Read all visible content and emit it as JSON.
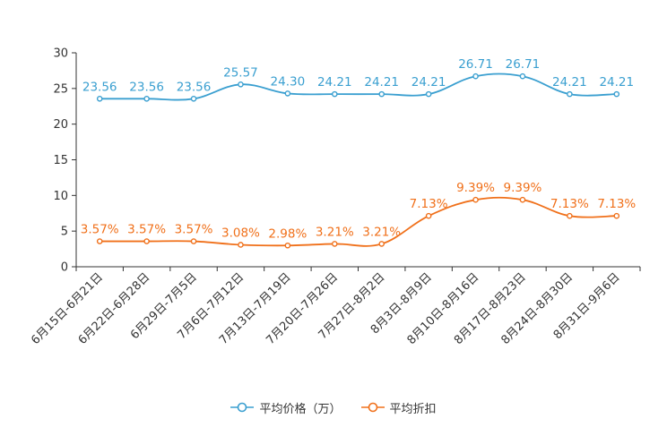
{
  "chart_data": {
    "type": "line",
    "title": "",
    "xlabel": "",
    "ylabel": "",
    "ylim": [
      0,
      30
    ],
    "yticks": [
      0,
      5,
      10,
      15,
      20,
      25,
      30
    ],
    "grid": false,
    "legend_position": "bottom-center",
    "categories": [
      "6月15日-6月21日",
      "6月22日-6月28日",
      "6月29日-7月5日",
      "7月6日-7月12日",
      "7月13日-7月19日",
      "7月20日-7月26日",
      "7月27日-8月2日",
      "8月3日-8月9日",
      "8月10日-8月16日",
      "8月17日-8月23日",
      "8月24日-8月30日",
      "8月31日-9月6日"
    ],
    "series": [
      {
        "name": "平均价格（万）",
        "color": "#3a9fd0",
        "values": [
          23.56,
          23.56,
          23.56,
          25.57,
          24.3,
          24.21,
          24.21,
          24.21,
          26.71,
          26.71,
          24.21,
          24.21
        ],
        "labels": [
          "23.56",
          "23.56",
          "23.56",
          "25.57",
          "24.30",
          "24.21",
          "24.21",
          "24.21",
          "26.71",
          "26.71",
          "24.21",
          "24.21"
        ]
      },
      {
        "name": "平均折扣",
        "color": "#f0701a",
        "values": [
          3.57,
          3.57,
          3.57,
          3.08,
          2.98,
          3.21,
          3.21,
          7.13,
          9.39,
          9.39,
          7.13,
          7.13
        ],
        "labels": [
          "3.57%",
          "3.57%",
          "3.57%",
          "3.08%",
          "2.98%",
          "3.21%",
          "3.21%",
          "7.13%",
          "9.39%",
          "9.39%",
          "7.13%",
          "7.13%"
        ]
      }
    ]
  }
}
